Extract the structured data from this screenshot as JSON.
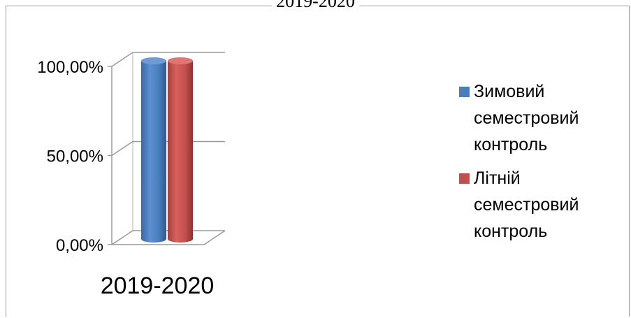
{
  "chart_data": {
    "type": "bar",
    "title": "2019-2020",
    "categories": [
      "2019-2020"
    ],
    "series": [
      {
        "name": "Зимовий семестровий контроль",
        "color": "#4a7ebb",
        "values": [
          1.0
        ]
      },
      {
        "name": "Літній семестровий контроль",
        "color": "#c0504d",
        "values": [
          1.0
        ]
      }
    ],
    "ylim": [
      0,
      1
    ],
    "yticks": [
      "0,00%",
      "50,00%",
      "100,00%"
    ],
    "ytick_values": [
      0,
      0.5,
      1.0
    ],
    "grid": true,
    "legend_position": "right",
    "style": "3d-cylinder"
  }
}
